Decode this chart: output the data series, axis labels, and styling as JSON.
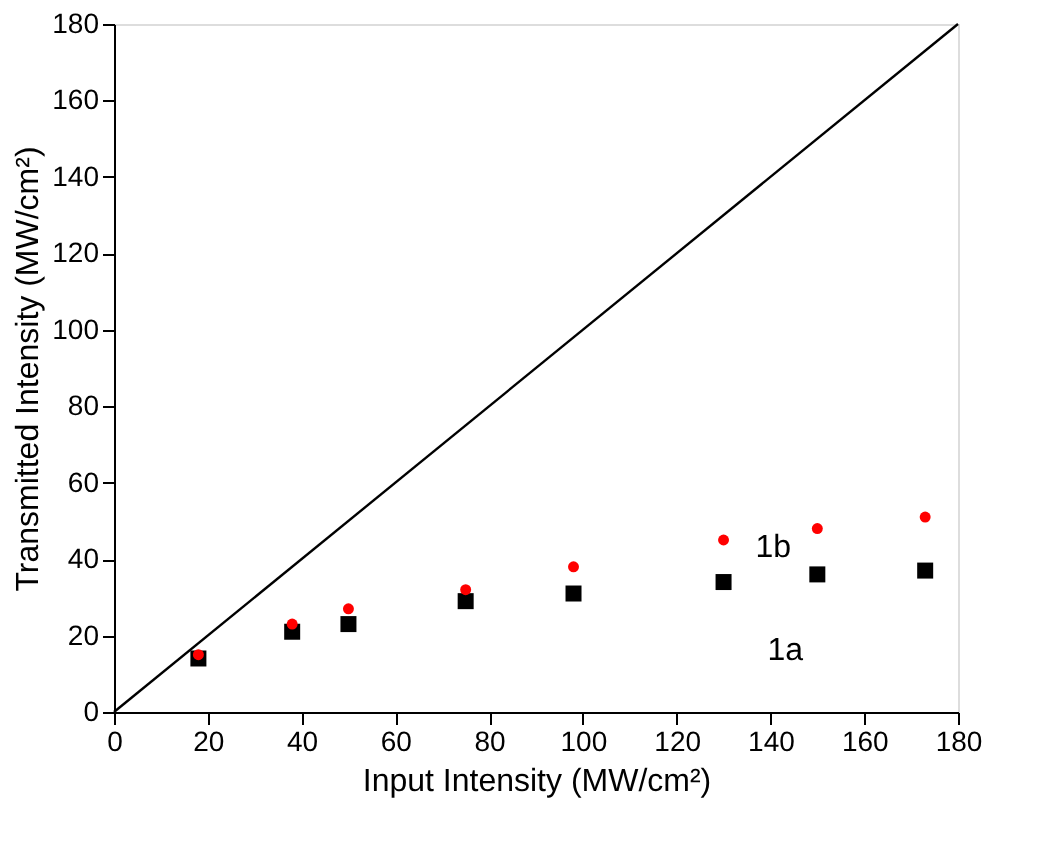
{
  "chart_data": {
    "type": "scatter",
    "xlabel": "Input Intensity (MW/cm²)",
    "ylabel": "Transmitted Intensity (MW/cm²)",
    "x": [
      18,
      38,
      50,
      75,
      98,
      130,
      150,
      173
    ],
    "series": [
      {
        "color": "#000000",
        "marker": "square",
        "values": [
          14,
          21,
          23,
          29,
          31,
          34,
          36,
          37
        ]
      },
      {
        "color": "#ff0000",
        "marker": "circle",
        "values": [
          15,
          23,
          27,
          32,
          38,
          45,
          48,
          51
        ]
      },
      {
        "type": "line",
        "color": "#000000",
        "marker": "none",
        "line_style": "solid",
        "x": [
          0,
          180
        ],
        "values": [
          0,
          180
        ]
      }
    ],
    "annotations": [
      "1a",
      "1b"
    ],
    "xlim": [
      0,
      180
    ],
    "ylim": [
      0,
      180
    ],
    "xticks": [
      0,
      20,
      40,
      60,
      80,
      100,
      120,
      140,
      160,
      180
    ],
    "yticks": [
      0,
      20,
      40,
      60,
      80,
      100,
      120,
      140,
      160,
      180
    ],
    "grid": false
  }
}
